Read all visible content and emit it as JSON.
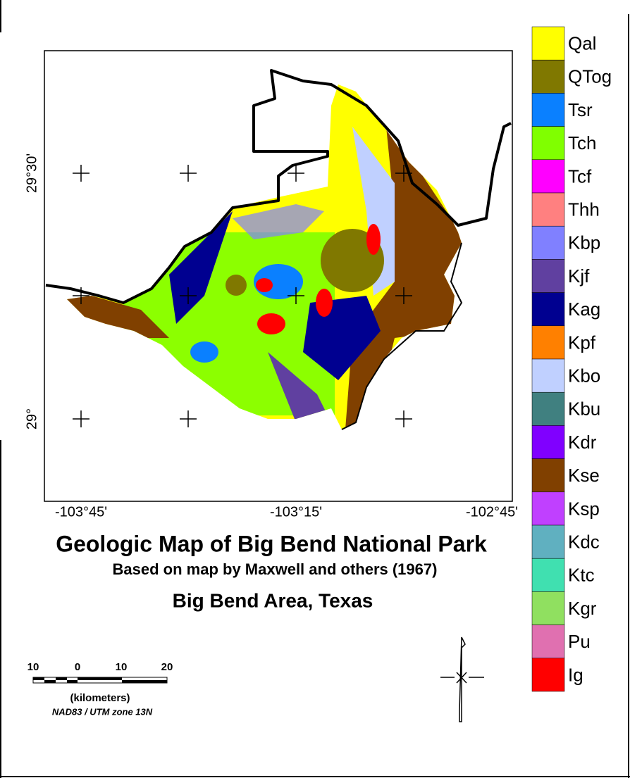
{
  "title": "Geologic Map of Big Bend National Park",
  "subtitle": "Based on map by Maxwell and others (1967)",
  "area": "Big Bend Area, Texas",
  "longitude_labels": [
    "-103°45'",
    "-103°15'",
    "-102°45'"
  ],
  "latitude_labels": [
    "29°30'",
    "29°"
  ],
  "scale": {
    "labels": [
      "10",
      "0",
      "10",
      "20"
    ],
    "unit": "(kilometers)",
    "projection": "NAD83 / UTM zone 13N"
  },
  "legend": [
    {
      "name": "Qal",
      "color": "#ffff00"
    },
    {
      "name": "QTog",
      "color": "#807800"
    },
    {
      "name": "Tsr",
      "color": "#0a80ff"
    },
    {
      "name": "Tch",
      "color": "#80ff00"
    },
    {
      "name": "Tcf",
      "color": "#ff00ff"
    },
    {
      "name": "Thh",
      "color": "#ff8080"
    },
    {
      "name": "Kbp",
      "color": "#8080ff"
    },
    {
      "name": "Kjf",
      "color": "#6040a0"
    },
    {
      "name": "Kag",
      "color": "#000090"
    },
    {
      "name": "Kpf",
      "color": "#ff8000"
    },
    {
      "name": "Kbo",
      "color": "#c0d0ff"
    },
    {
      "name": "Kbu",
      "color": "#408080"
    },
    {
      "name": "Kdr",
      "color": "#8000ff"
    },
    {
      "name": "Kse",
      "color": "#804000"
    },
    {
      "name": "Ksp",
      "color": "#c040ff"
    },
    {
      "name": "Kdc",
      "color": "#60b0c0"
    },
    {
      "name": "Ktc",
      "color": "#40e0b0"
    },
    {
      "name": "Kgr",
      "color": "#90e060"
    },
    {
      "name": "Pu",
      "color": "#e070b0"
    },
    {
      "name": "Ig",
      "color": "#ff0000"
    }
  ]
}
